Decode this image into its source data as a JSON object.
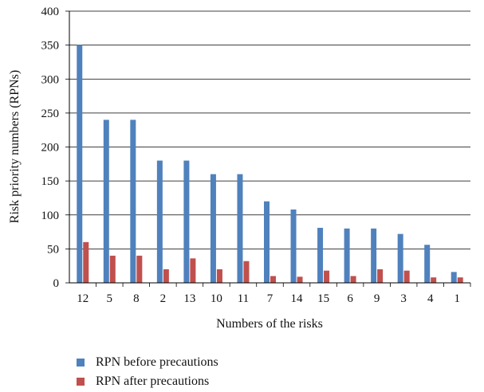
{
  "chart_data": {
    "type": "bar",
    "title": "",
    "xlabel": "Numbers of the risks",
    "ylabel": "Risk priority numbers (RPNs)",
    "categories": [
      "12",
      "5",
      "8",
      "2",
      "13",
      "10",
      "11",
      "7",
      "14",
      "15",
      "6",
      "9",
      "3",
      "4",
      "1"
    ],
    "ylim": [
      0,
      400
    ],
    "yticks": [
      "0",
      "50",
      "100",
      "150",
      "200",
      "250",
      "300",
      "350",
      "400"
    ],
    "grid": "horizontal",
    "legend_position": "bottom",
    "series": [
      {
        "name": "RPN before precautions",
        "color": "#4f81bd",
        "values": [
          350,
          240,
          240,
          180,
          180,
          160,
          160,
          120,
          108,
          81,
          80,
          80,
          72,
          56,
          16
        ]
      },
      {
        "name": "RPN after precautions",
        "color": "#c0504d",
        "values": [
          60,
          40,
          40,
          20,
          36,
          20,
          32,
          10,
          9,
          18,
          10,
          20,
          18,
          8,
          8
        ]
      }
    ]
  }
}
